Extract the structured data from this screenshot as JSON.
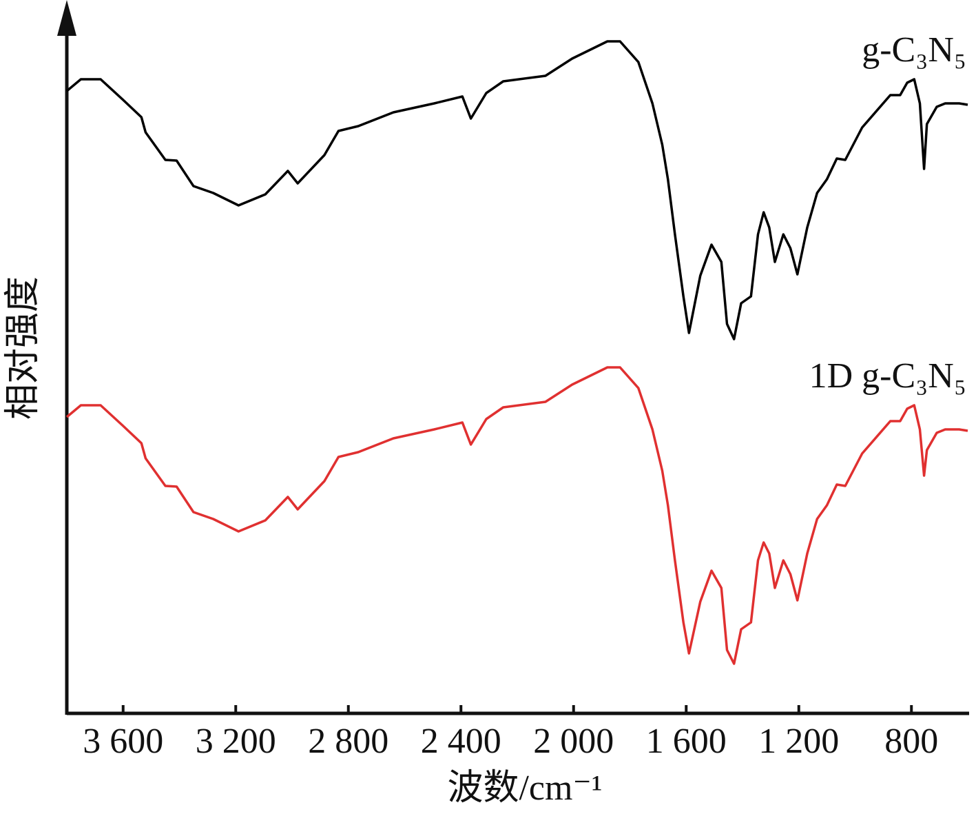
{
  "chart_data": {
    "type": "line",
    "xlabel": "波数/cm⁻¹",
    "ylabel": "相对强度",
    "x": [
      3800,
      3750,
      3680,
      3600,
      3535,
      3520,
      3450,
      3410,
      3350,
      3280,
      3190,
      3095,
      3015,
      2980,
      2885,
      2835,
      2765,
      2640,
      2495,
      2395,
      2365,
      2310,
      2250,
      2100,
      2005,
      1880,
      1835,
      1770,
      1720,
      1685,
      1665,
      1640,
      1610,
      1590,
      1550,
      1510,
      1475,
      1455,
      1430,
      1405,
      1370,
      1345,
      1325,
      1305,
      1285,
      1255,
      1230,
      1205,
      1170,
      1135,
      1100,
      1065,
      1035,
      975,
      875,
      840,
      815,
      790,
      770,
      755,
      745,
      710,
      680,
      655,
      630,
      600
    ],
    "series": [
      {
        "name": "g-C₃N₅",
        "color": "#000000",
        "values": [
          90.3,
          92,
          92,
          89,
          86.5,
          84.3,
          80.3,
          80.2,
          76.5,
          75.5,
          73.7,
          75.3,
          78.7,
          76.9,
          81,
          84.5,
          85.2,
          87.2,
          88.5,
          89.5,
          86.3,
          90,
          91.7,
          92.5,
          95,
          97.5,
          97.5,
          94.5,
          88.5,
          82.5,
          77.5,
          69.5,
          60.5,
          55.2,
          63.5,
          68,
          65.5,
          56.5,
          54.3,
          59.5,
          60.5,
          69.5,
          72.7,
          70.5,
          65.5,
          69.5,
          67.5,
          63.7,
          70.5,
          75.5,
          77.5,
          80.5,
          80.3,
          85,
          89.7,
          89.7,
          91.5,
          92,
          88.5,
          79,
          85.5,
          88,
          88.5,
          88.5,
          88.5,
          88.3
        ]
      },
      {
        "name": "1D g-C₃N₅",
        "color": "#e03030",
        "values": [
          43,
          44.7,
          44.7,
          41.7,
          39.2,
          37,
          33,
          32.9,
          29.2,
          28.2,
          26.4,
          28,
          31.4,
          29.6,
          33.7,
          37.2,
          37.9,
          39.9,
          41.2,
          42.2,
          39,
          42.7,
          44.4,
          45.2,
          47.7,
          50.2,
          50.2,
          47.2,
          41.2,
          35.2,
          30.2,
          22.2,
          13.2,
          8.7,
          16.2,
          20.7,
          18.2,
          9.2,
          7.2,
          12.2,
          13.2,
          22.2,
          24.8,
          23.2,
          18.2,
          22.2,
          20.2,
          16.4,
          23.2,
          28.2,
          30.2,
          33.2,
          33,
          37.7,
          42.4,
          42.4,
          44.2,
          44.7,
          41.2,
          34.5,
          38.2,
          40.7,
          41.2,
          41.2,
          41.2,
          41
        ]
      }
    ],
    "xlim": [
      3800,
      600
    ],
    "xticks": [
      {
        "value": 3600,
        "label": "3 600"
      },
      {
        "value": 3200,
        "label": "3 200"
      },
      {
        "value": 2800,
        "label": "2 800"
      },
      {
        "value": 2400,
        "label": "2 400"
      },
      {
        "value": 2000,
        "label": "2 000"
      },
      {
        "value": 1600,
        "label": "1 600"
      },
      {
        "value": 1200,
        "label": "1 200"
      },
      800
    ],
    "ylim": [
      0,
      100
    ]
  }
}
